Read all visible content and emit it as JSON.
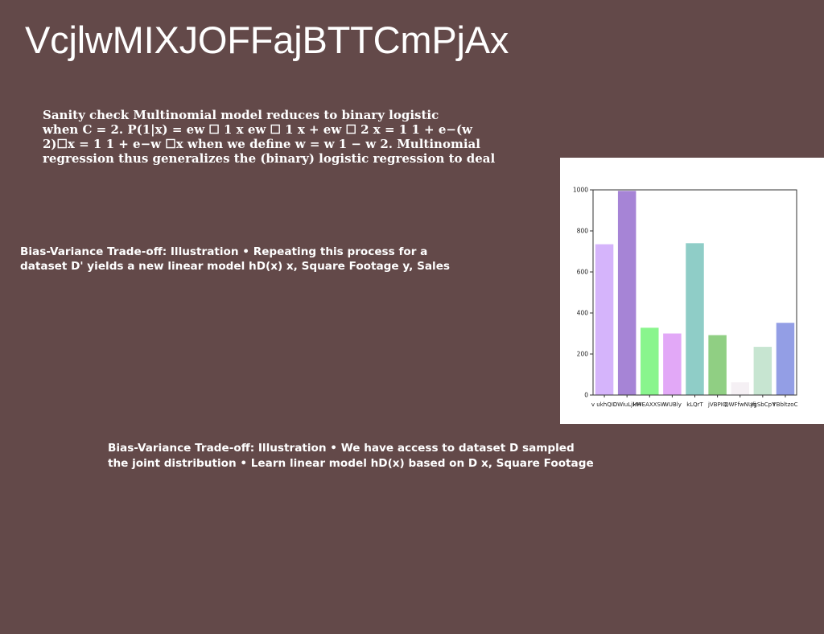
{
  "slide": {
    "title": "VcjlwMIXJOFFajBTTCmPjAx",
    "block1": [
      "Sanity check Multinomial model reduces to binary logistic",
      "when C = 2. P(1|x) = ew ☐ 1 x ew ☐ 1 x + ew ☐ 2 x = 1 1 + e−(w",
      "2)☐x = 1 1 + e−w ☐x when we define w = w 1 − w 2. Multinomial",
      "regression thus generalizes the (binary) logistic regression to deal"
    ],
    "block2": [
      "Bias-Variance Trade-off: Illustration • Repeating this process for a",
      "dataset D' yields a new linear model hD(x) x, Square Footage y, Sales"
    ],
    "block3": [
      "Bias-Variance Trade-off: Illustration • We have access to dataset D sampled",
      "the joint distribution • Learn linear model hD(x) based on D x, Square Footage"
    ]
  },
  "chart_data": {
    "type": "bar",
    "categories": [
      "v ukhQID",
      "DWiuLjHH",
      "kWEAXXSW",
      "WUBly",
      "kLQrT",
      "jVBPIQ",
      "QWFfwNUfj",
      "ygSbCpY",
      "YBbltzoC"
    ],
    "values": [
      735,
      995,
      328,
      300,
      740,
      292,
      62,
      235,
      352
    ],
    "colors": [
      "#d5b4fb",
      "#a684d6",
      "#89f58d",
      "#e2a8f7",
      "#8fcdc7",
      "#90cf83",
      "#f5f0f4",
      "#c7e5d1",
      "#939ee5"
    ],
    "ylim": [
      0,
      1000
    ],
    "yticks": [
      0,
      200,
      400,
      600,
      800,
      1000
    ],
    "grid": false
  }
}
